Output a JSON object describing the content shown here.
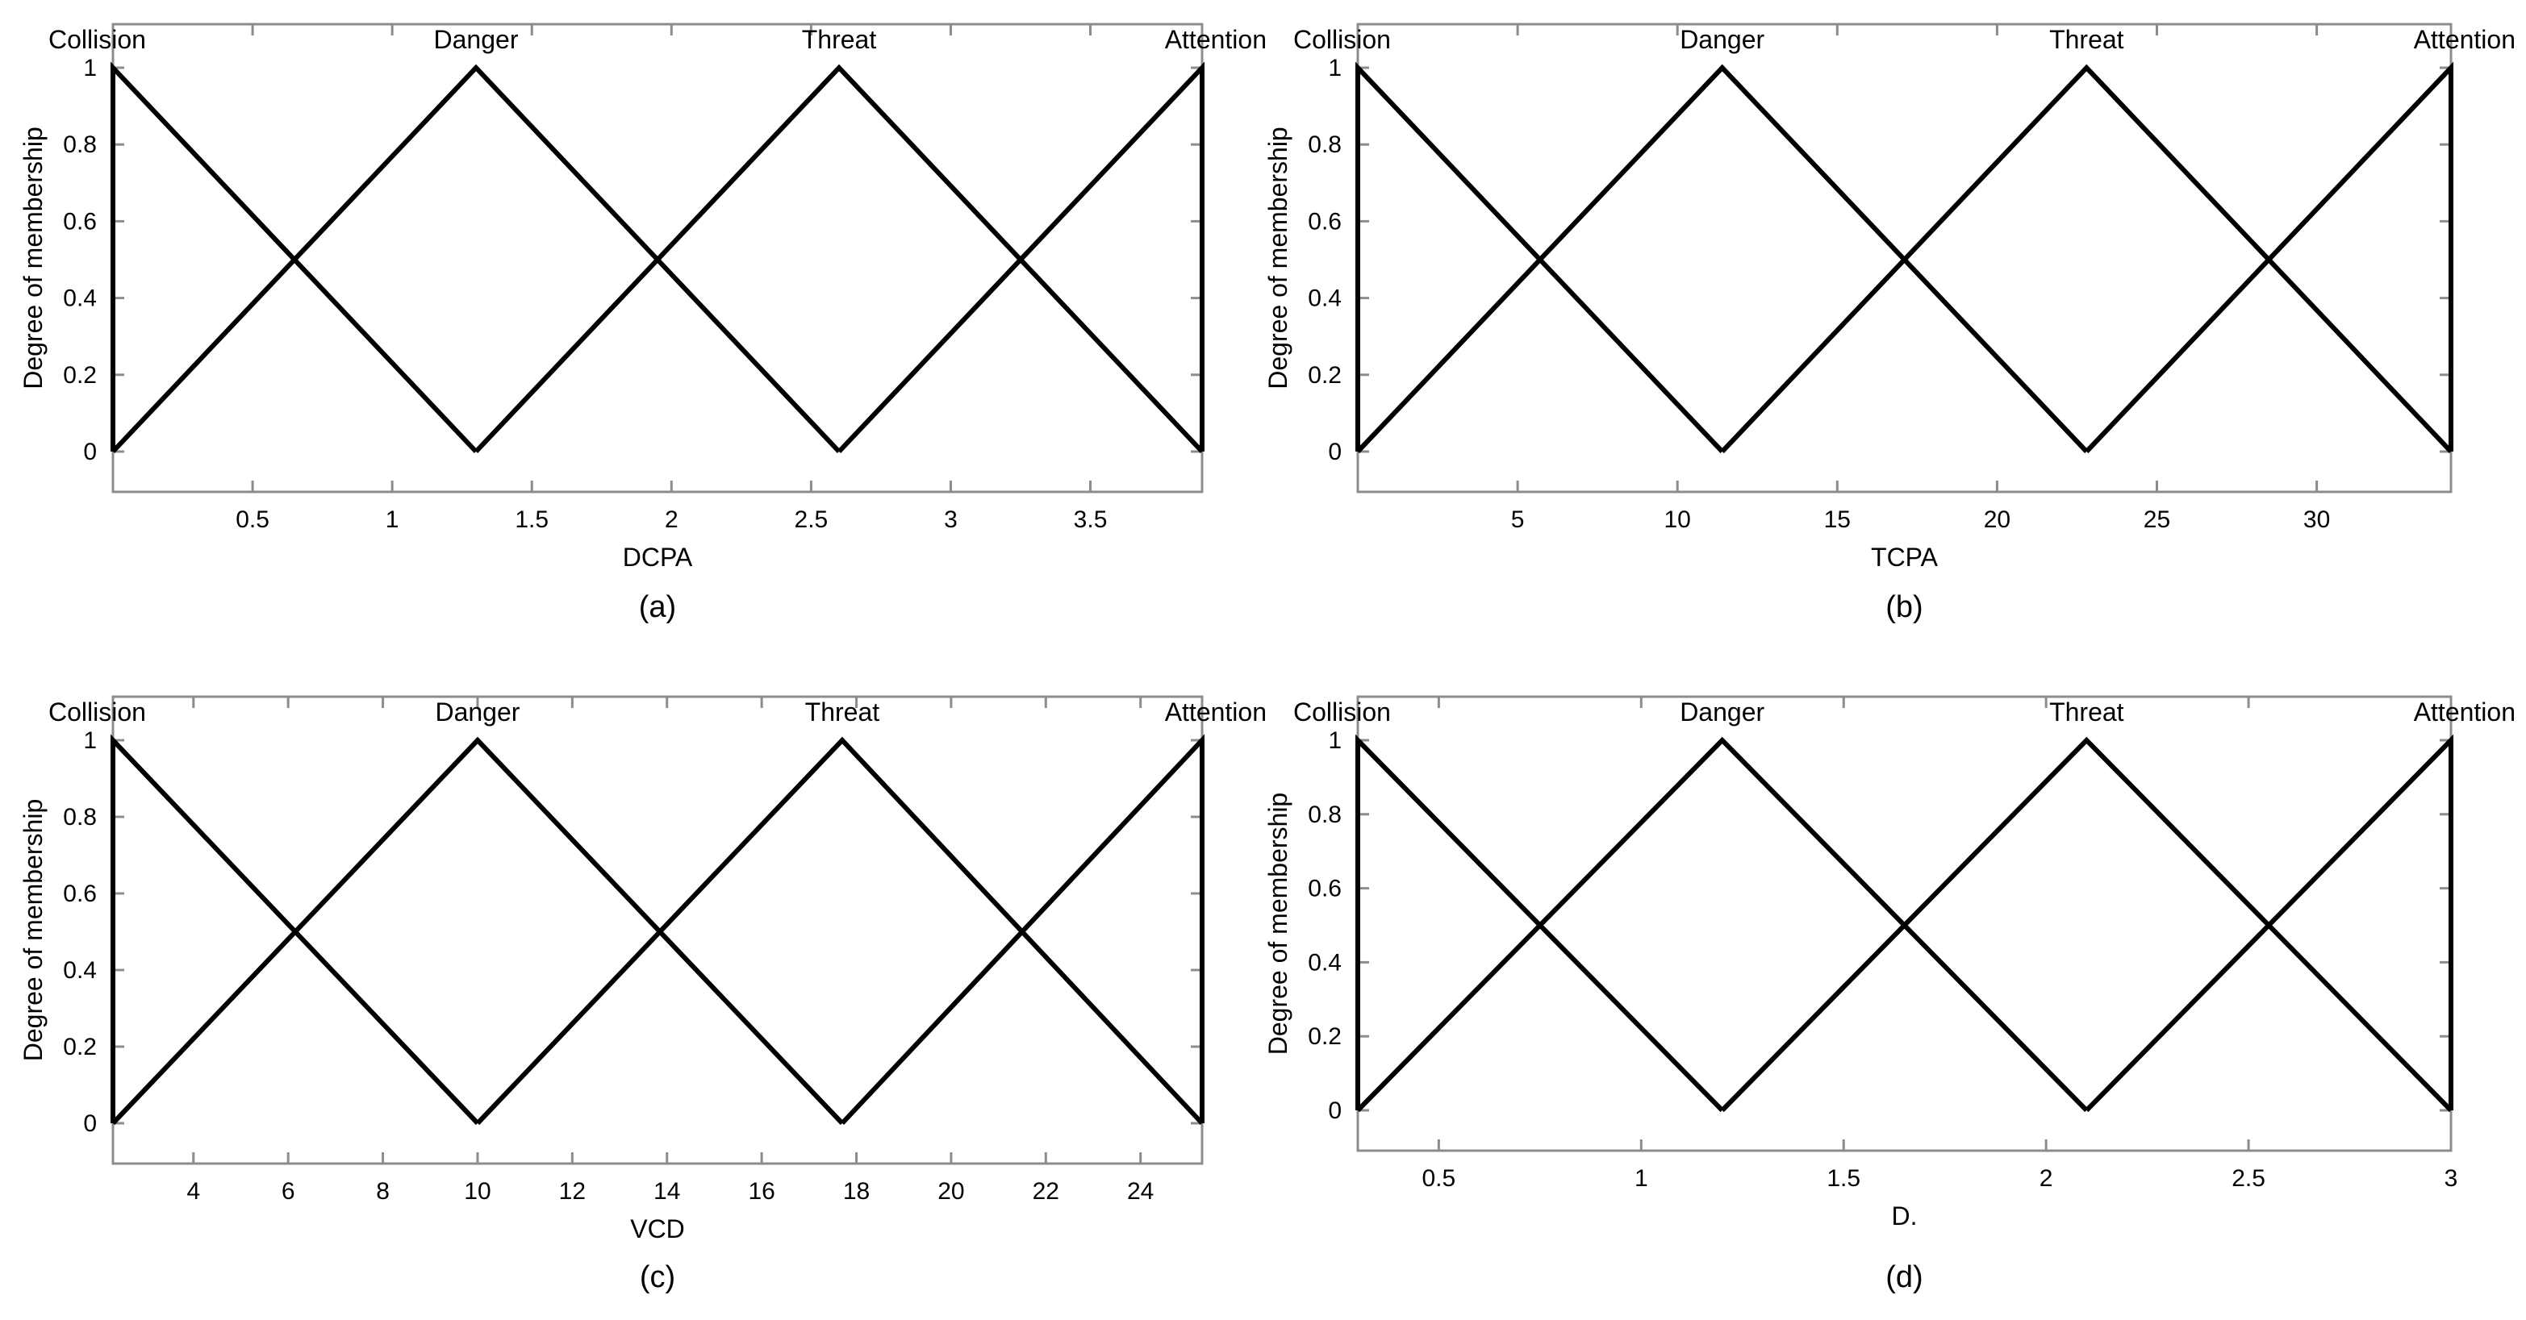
{
  "chart_data": [
    {
      "type": "line",
      "caption": "(a)",
      "xlabel": "DCPA",
      "ylabel": "Degree of membership",
      "xlim": [
        0,
        3.9
      ],
      "ylim": [
        0,
        1
      ],
      "xticks": [
        "0.5",
        "1",
        "1.5",
        "2",
        "2.5",
        "3",
        "3.5"
      ],
      "yticks": [
        "0",
        "0.2",
        "0.4",
        "0.6",
        "0.8",
        "1"
      ],
      "grid": false,
      "series": [
        {
          "name": "Collision",
          "x": [
            0,
            0,
            1.3
          ],
          "y": [
            0,
            1,
            0
          ]
        },
        {
          "name": "Danger",
          "x": [
            0,
            1.3,
            2.6
          ],
          "y": [
            0,
            1,
            0
          ]
        },
        {
          "name": "Threat",
          "x": [
            1.3,
            2.6,
            3.9
          ],
          "y": [
            0,
            1,
            0
          ]
        },
        {
          "name": "Attention",
          "x": [
            2.6,
            3.9,
            3.9
          ],
          "y": [
            0,
            1,
            0
          ]
        }
      ]
    },
    {
      "type": "line",
      "caption": "(b)",
      "xlabel": "TCPA",
      "ylabel": "Degree of membership",
      "xlim": [
        0,
        34.2
      ],
      "ylim": [
        0,
        1
      ],
      "xticks": [
        "5",
        "10",
        "15",
        "20",
        "25",
        "30"
      ],
      "yticks": [
        "0",
        "0.2",
        "0.4",
        "0.6",
        "0.8",
        "1"
      ],
      "grid": false,
      "series": [
        {
          "name": "Collision",
          "x": [
            0,
            0,
            11.4
          ],
          "y": [
            0,
            1,
            0
          ]
        },
        {
          "name": "Danger",
          "x": [
            0,
            11.4,
            22.8
          ],
          "y": [
            0,
            1,
            0
          ]
        },
        {
          "name": "Threat",
          "x": [
            11.4,
            22.8,
            34.2
          ],
          "y": [
            0,
            1,
            0
          ]
        },
        {
          "name": "Attention",
          "x": [
            22.8,
            34.2,
            34.2
          ],
          "y": [
            0,
            1,
            0
          ]
        }
      ]
    },
    {
      "type": "line",
      "caption": "(c)",
      "xlabel": "VCD",
      "ylabel": "Degree of membership",
      "xlim": [
        2.3,
        25.3
      ],
      "ylim": [
        0,
        1
      ],
      "xticks": [
        "4",
        "6",
        "8",
        "10",
        "12",
        "14",
        "16",
        "18",
        "20",
        "22",
        "24"
      ],
      "yticks": [
        "0",
        "0.2",
        "0.4",
        "0.6",
        "0.8",
        "1"
      ],
      "grid": false,
      "series": [
        {
          "name": "Collision",
          "x": [
            2.3,
            2.3,
            10
          ],
          "y": [
            0,
            1,
            0
          ]
        },
        {
          "name": "Danger",
          "x": [
            2.3,
            10,
            17.7
          ],
          "y": [
            0,
            1,
            0
          ]
        },
        {
          "name": "Threat",
          "x": [
            10,
            17.7,
            25.3
          ],
          "y": [
            0,
            1,
            0
          ]
        },
        {
          "name": "Attention",
          "x": [
            17.7,
            25.3,
            25.3
          ],
          "y": [
            0,
            1,
            0
          ]
        }
      ]
    },
    {
      "type": "line",
      "caption": "(d)",
      "xlabel": "D.",
      "ylabel": "Degree of membership",
      "xlim": [
        0.3,
        3
      ],
      "ylim": [
        0,
        1
      ],
      "xticks": [
        "0.5",
        "1",
        "1.5",
        "2",
        "2.5",
        "3"
      ],
      "yticks": [
        "0",
        "0.2",
        "0.4",
        "0.6",
        "0.8",
        "1"
      ],
      "grid": false,
      "series": [
        {
          "name": "Collision",
          "x": [
            0.3,
            0.3,
            1.2
          ],
          "y": [
            0,
            1,
            0
          ]
        },
        {
          "name": "Danger",
          "x": [
            0.3,
            1.2,
            2.1
          ],
          "y": [
            0,
            1,
            0
          ]
        },
        {
          "name": "Threat",
          "x": [
            1.2,
            2.1,
            3
          ],
          "y": [
            0,
            1,
            0
          ]
        },
        {
          "name": "Attention",
          "x": [
            2.1,
            3,
            3
          ],
          "y": [
            0,
            1,
            0
          ]
        }
      ]
    }
  ]
}
